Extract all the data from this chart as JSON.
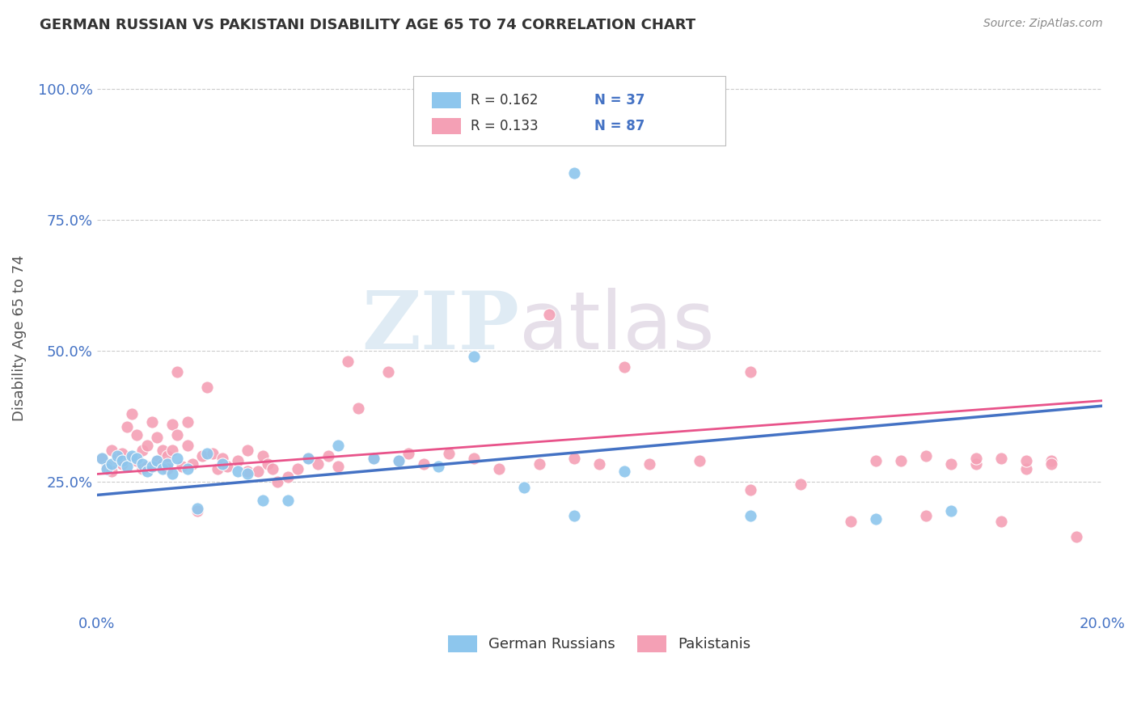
{
  "title": "GERMAN RUSSIAN VS PAKISTANI DISABILITY AGE 65 TO 74 CORRELATION CHART",
  "source": "Source: ZipAtlas.com",
  "ylabel": "Disability Age 65 to 74",
  "xlim": [
    0.0,
    0.2
  ],
  "ylim": [
    0.0,
    1.05
  ],
  "xticks": [
    0.0,
    0.05,
    0.1,
    0.15,
    0.2
  ],
  "xticklabels": [
    "0.0%",
    "",
    "",
    "",
    "20.0%"
  ],
  "yticks": [
    0.25,
    0.5,
    0.75,
    1.0
  ],
  "yticklabels": [
    "25.0%",
    "50.0%",
    "75.0%",
    "100.0%"
  ],
  "german_russian_color": "#8DC6ED",
  "pakistani_color": "#F4A0B5",
  "trend_german_color": "#4472C4",
  "trend_pakistani_color": "#E8538A",
  "R_german": 0.162,
  "N_german": 37,
  "R_pakistani": 0.133,
  "N_pakistani": 87,
  "legend_german_label": "German Russians",
  "legend_pakistani_label": "Pakistanis",
  "watermark_zip": "ZIP",
  "watermark_atlas": "atlas",
  "background_color": "#FFFFFF",
  "grid_color": "#CCCCCC",
  "gr_trend_x0": 0.0,
  "gr_trend_y0": 0.225,
  "gr_trend_x1": 0.2,
  "gr_trend_y1": 0.395,
  "pk_trend_x0": 0.0,
  "pk_trend_y0": 0.265,
  "pk_trend_x1": 0.2,
  "pk_trend_y1": 0.405,
  "german_russian_x": [
    0.001,
    0.002,
    0.003,
    0.004,
    0.005,
    0.006,
    0.007,
    0.008,
    0.009,
    0.01,
    0.011,
    0.012,
    0.013,
    0.014,
    0.015,
    0.016,
    0.018,
    0.02,
    0.022,
    0.025,
    0.028,
    0.03,
    0.033,
    0.038,
    0.042,
    0.048,
    0.055,
    0.06,
    0.068,
    0.075,
    0.085,
    0.095,
    0.105,
    0.095,
    0.13,
    0.155,
    0.17
  ],
  "german_russian_y": [
    0.295,
    0.275,
    0.285,
    0.3,
    0.29,
    0.28,
    0.3,
    0.295,
    0.285,
    0.27,
    0.28,
    0.29,
    0.275,
    0.285,
    0.265,
    0.295,
    0.275,
    0.2,
    0.305,
    0.285,
    0.27,
    0.265,
    0.215,
    0.215,
    0.295,
    0.32,
    0.295,
    0.29,
    0.28,
    0.49,
    0.24,
    0.185,
    0.27,
    0.84,
    0.185,
    0.18,
    0.195
  ],
  "pakistani_x": [
    0.001,
    0.002,
    0.003,
    0.003,
    0.004,
    0.005,
    0.005,
    0.006,
    0.007,
    0.007,
    0.008,
    0.008,
    0.009,
    0.009,
    0.01,
    0.01,
    0.011,
    0.012,
    0.012,
    0.013,
    0.013,
    0.014,
    0.014,
    0.015,
    0.015,
    0.016,
    0.016,
    0.017,
    0.018,
    0.018,
    0.019,
    0.02,
    0.021,
    0.022,
    0.023,
    0.024,
    0.025,
    0.026,
    0.028,
    0.03,
    0.03,
    0.032,
    0.033,
    0.034,
    0.035,
    0.036,
    0.038,
    0.04,
    0.042,
    0.044,
    0.046,
    0.048,
    0.05,
    0.052,
    0.055,
    0.058,
    0.06,
    0.062,
    0.065,
    0.07,
    0.075,
    0.08,
    0.088,
    0.09,
    0.095,
    0.1,
    0.105,
    0.11,
    0.12,
    0.13,
    0.14,
    0.15,
    0.16,
    0.165,
    0.175,
    0.18,
    0.185,
    0.19,
    0.13,
    0.155,
    0.165,
    0.17,
    0.175,
    0.18,
    0.185,
    0.19,
    0.195
  ],
  "pakistani_y": [
    0.295,
    0.28,
    0.31,
    0.27,
    0.295,
    0.285,
    0.305,
    0.355,
    0.38,
    0.295,
    0.34,
    0.29,
    0.31,
    0.275,
    0.28,
    0.32,
    0.365,
    0.29,
    0.335,
    0.285,
    0.31,
    0.275,
    0.3,
    0.31,
    0.36,
    0.46,
    0.34,
    0.28,
    0.32,
    0.365,
    0.285,
    0.195,
    0.3,
    0.43,
    0.305,
    0.275,
    0.295,
    0.28,
    0.29,
    0.31,
    0.27,
    0.27,
    0.3,
    0.285,
    0.275,
    0.25,
    0.26,
    0.275,
    0.295,
    0.285,
    0.3,
    0.28,
    0.48,
    0.39,
    0.295,
    0.46,
    0.29,
    0.305,
    0.285,
    0.305,
    0.295,
    0.275,
    0.285,
    0.57,
    0.295,
    0.285,
    0.47,
    0.285,
    0.29,
    0.235,
    0.245,
    0.175,
    0.29,
    0.3,
    0.285,
    0.295,
    0.275,
    0.29,
    0.46,
    0.29,
    0.185,
    0.285,
    0.295,
    0.175,
    0.29,
    0.285,
    0.145
  ]
}
